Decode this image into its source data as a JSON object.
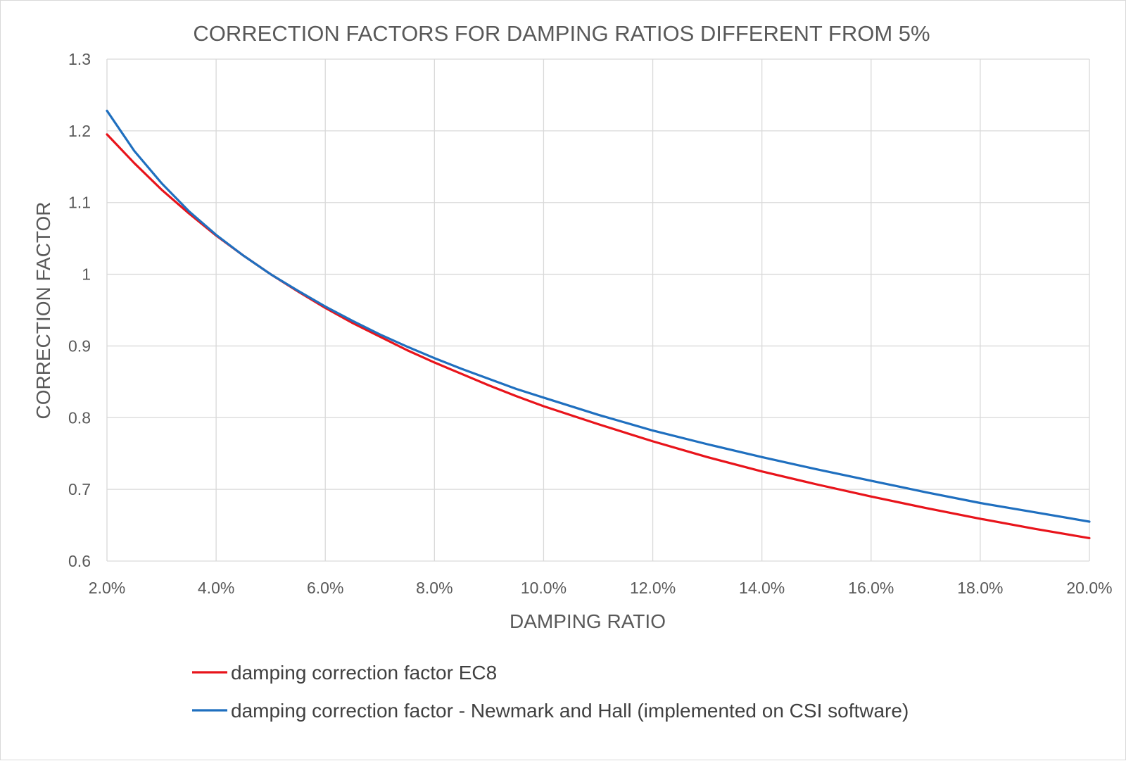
{
  "chart_data": {
    "type": "line",
    "title": "CORRECTION FACTORS FOR DAMPING RATIOS DIFFERENT FROM 5%",
    "xlabel": "DAMPING RATIO",
    "ylabel": "CORRECTION FACTOR",
    "xlim": [
      2,
      20
    ],
    "ylim": [
      0.6,
      1.3
    ],
    "x_ticks": [
      2,
      4,
      6,
      8,
      10,
      12,
      14,
      16,
      18,
      20
    ],
    "x_tick_labels": [
      "2.0%",
      "4.0%",
      "6.0%",
      "8.0%",
      "10.0%",
      "12.0%",
      "14.0%",
      "16.0%",
      "18.0%",
      "20.0%"
    ],
    "y_ticks": [
      0.6,
      0.7,
      0.8,
      0.9,
      1.0,
      1.1,
      1.2,
      1.3
    ],
    "y_tick_labels": [
      "0.6",
      "0.7",
      "0.8",
      "0.9",
      "1",
      "1.1",
      "1.2",
      "1.3"
    ],
    "grid": true,
    "legend_position": "bottom",
    "x": [
      2,
      2.5,
      3,
      3.5,
      4,
      4.5,
      5,
      5.5,
      6,
      6.5,
      7,
      7.5,
      8,
      8.5,
      9,
      9.5,
      10,
      11,
      12,
      13,
      14,
      15,
      16,
      17,
      18,
      19,
      20
    ],
    "series": [
      {
        "name": "damping correction factor EC8",
        "color": "#e8141b",
        "values": [
          1.195,
          1.155,
          1.118,
          1.085,
          1.054,
          1.026,
          1.0,
          0.976,
          0.953,
          0.932,
          0.913,
          0.894,
          0.877,
          0.861,
          0.845,
          0.83,
          0.816,
          0.791,
          0.767,
          0.745,
          0.725,
          0.707,
          0.69,
          0.674,
          0.659,
          0.645,
          0.632
        ]
      },
      {
        "name": "damping correction factor - Newmark and Hall (implemented on CSI software)",
        "color": "#1f6fbf",
        "values": [
          1.228,
          1.172,
          1.127,
          1.088,
          1.055,
          1.026,
          1.0,
          0.977,
          0.955,
          0.935,
          0.916,
          0.899,
          0.883,
          0.868,
          0.854,
          0.84,
          0.828,
          0.804,
          0.782,
          0.763,
          0.745,
          0.728,
          0.712,
          0.696,
          0.681,
          0.668,
          0.655
        ]
      }
    ]
  }
}
